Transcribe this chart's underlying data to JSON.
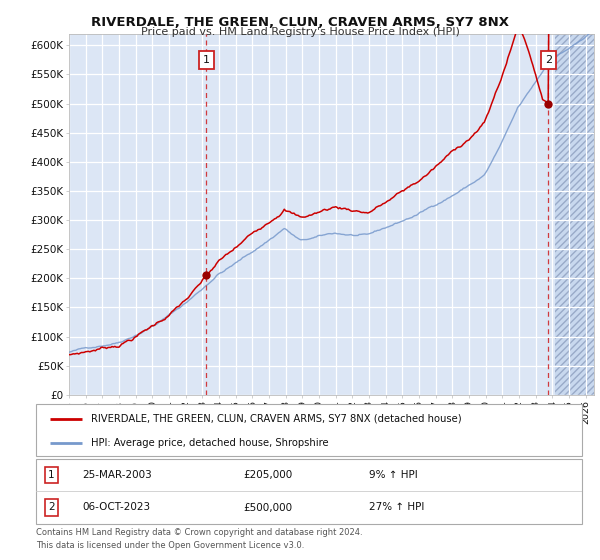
{
  "title": "RIVERDALE, THE GREEN, CLUN, CRAVEN ARMS, SY7 8NX",
  "subtitle": "Price paid vs. HM Land Registry's House Price Index (HPI)",
  "background_color": "#dce6f5",
  "outer_bg_color": "#ffffff",
  "red_line_color": "#cc0000",
  "blue_line_color": "#7799cc",
  "grid_color": "#c8d4e8",
  "xmin": 1995.0,
  "xmax": 2026.5,
  "ymin": 0,
  "ymax": 620000,
  "yticks": [
    0,
    50000,
    100000,
    150000,
    200000,
    250000,
    300000,
    350000,
    400000,
    450000,
    500000,
    550000,
    600000
  ],
  "ytick_labels": [
    "£0",
    "£50K",
    "£100K",
    "£150K",
    "£200K",
    "£250K",
    "£300K",
    "£350K",
    "£400K",
    "£450K",
    "£500K",
    "£550K",
    "£600K"
  ],
  "xticks": [
    1995,
    1996,
    1997,
    1998,
    1999,
    2000,
    2001,
    2002,
    2003,
    2004,
    2005,
    2006,
    2007,
    2008,
    2009,
    2010,
    2011,
    2012,
    2013,
    2014,
    2015,
    2016,
    2017,
    2018,
    2019,
    2020,
    2021,
    2022,
    2023,
    2024,
    2025,
    2026
  ],
  "event1_x": 2003.23,
  "event1_y": 205000,
  "event1_label": "1",
  "event1_date": "25-MAR-2003",
  "event1_price": "£205,000",
  "event1_hpi": "9% ↑ HPI",
  "event2_x": 2023.77,
  "event2_y": 500000,
  "event2_label": "2",
  "event2_date": "06-OCT-2023",
  "event2_price": "£500,000",
  "event2_hpi": "27% ↑ HPI",
  "legend_red": "RIVERDALE, THE GREEN, CLUN, CRAVEN ARMS, SY7 8NX (detached house)",
  "legend_blue": "HPI: Average price, detached house, Shropshire",
  "footer": "Contains HM Land Registry data © Crown copyright and database right 2024.\nThis data is licensed under the Open Government Licence v3.0.",
  "hatch_start": 2024.17
}
